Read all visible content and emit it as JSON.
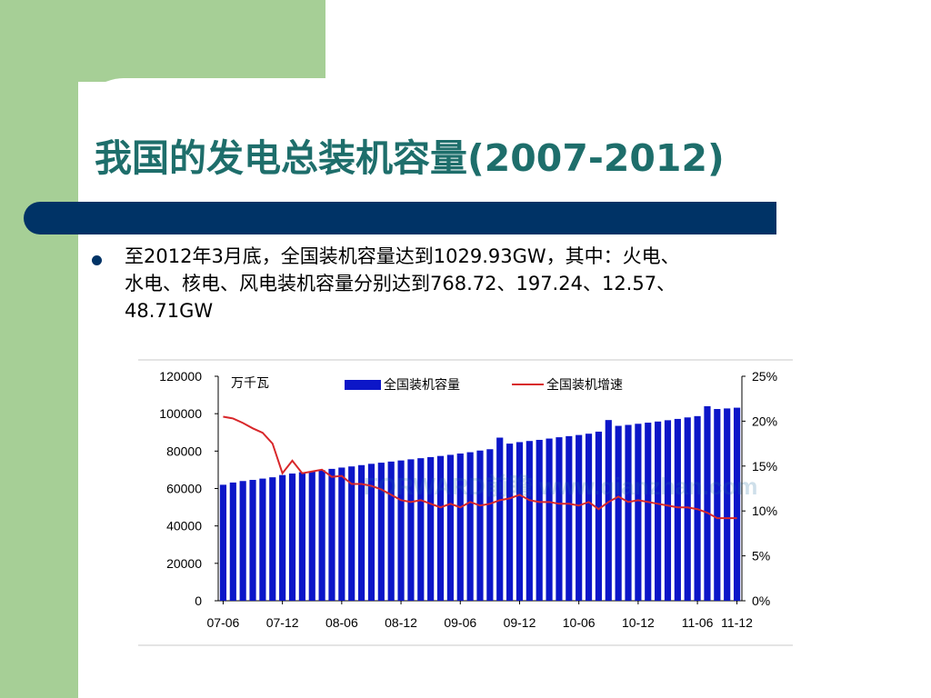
{
  "slide": {
    "title": "我国的发电总装机容量(2007-2012)",
    "bullet_line1": "至2012年3月底，全国装机容量达到1029.93GW，其中：火电、",
    "bullet_line2": "水电、核电、风电装机容量分别达到768.72、197.24、12.57、",
    "bullet_line3": "48.71GW"
  },
  "colors": {
    "green": "#a6cf96",
    "title": "#1e6e6b",
    "bar_navy": "#003366",
    "bars": "#0c16c8",
    "line": "#d8272a"
  },
  "chart_data": {
    "type": "bar",
    "unit_label": "万千瓦",
    "watermark": "FORWARD前瞻 www.qianzhan.com",
    "x_ticks": [
      "07-06",
      "07-12",
      "08-06",
      "08-12",
      "09-06",
      "09-12",
      "10-06",
      "10-12",
      "11-06",
      "11-12"
    ],
    "y_left": {
      "ticks": [
        "0",
        "20000",
        "40000",
        "60000",
        "80000",
        "100000",
        "120000"
      ],
      "ylim": [
        0,
        120000
      ]
    },
    "y_right": {
      "ticks": [
        "0%",
        "5%",
        "10%",
        "15%",
        "20%",
        "25%"
      ],
      "ylim": [
        0,
        25
      ]
    },
    "legend": {
      "placement": "top",
      "bar_label": "全国装机容量",
      "line_label": "全国装机增速"
    },
    "series": [
      {
        "name": "全国装机容量",
        "type": "bar",
        "axis": "left",
        "values": [
          62000,
          63200,
          64000,
          64600,
          65300,
          66000,
          67200,
          68000,
          68700,
          69200,
          69800,
          70500,
          71200,
          71800,
          72500,
          73200,
          73800,
          74400,
          75000,
          75600,
          76200,
          76800,
          77400,
          78000,
          78700,
          79400,
          80300,
          81000,
          87200,
          84000,
          84800,
          85400,
          86000,
          86700,
          87400,
          88000,
          88600,
          89300,
          90400,
          96600,
          93500,
          94000,
          94600,
          95200,
          95800,
          96500,
          97200,
          98000,
          98700,
          104000,
          102500,
          102800,
          103200
        ]
      },
      {
        "name": "全国装机增速",
        "type": "line",
        "axis": "right",
        "values": [
          20.5,
          20.3,
          19.8,
          19.2,
          18.7,
          17.5,
          14.2,
          15.6,
          14.2,
          14.4,
          14.6,
          13.8,
          13.9,
          13.0,
          13.0,
          12.8,
          12.4,
          11.8,
          11.2,
          11.0,
          11.2,
          10.8,
          10.4,
          10.8,
          10.4,
          11.0,
          10.6,
          10.8,
          11.2,
          11.4,
          11.8,
          11.2,
          11.0,
          11.0,
          10.8,
          10.8,
          10.6,
          11.0,
          10.2,
          11.0,
          11.6,
          11.0,
          11.2,
          11.0,
          10.8,
          10.6,
          10.4,
          10.4,
          10.2,
          9.8,
          9.2,
          9.2,
          9.2
        ]
      }
    ]
  }
}
